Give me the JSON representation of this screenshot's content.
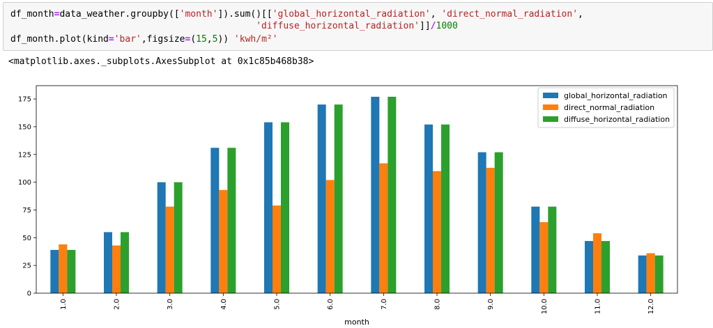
{
  "code": {
    "line1_a": "df_month",
    "line1_b": "=",
    "line1_c": "data_weather.groupby([",
    "line1_d": "'month'",
    "line1_e": "]).sum()[[",
    "line1_f": "'global_horizontal_radiation'",
    "line1_g": ", ",
    "line1_h": "'direct_normal_radiation'",
    "line1_i": ",",
    "line2_a": "'diffuse_horizontal_radiation'",
    "line2_b": "]]",
    "line2_c": "/",
    "line2_d": "1000",
    "line3_a": "df_month.plot(kind",
    "line3_b": "=",
    "line3_c": "'bar'",
    "line3_d": ",figsize",
    "line3_e": "=",
    "line3_f": "(",
    "line3_g": "15",
    "line3_h": ",",
    "line3_i": "5",
    "line3_j": "))",
    "line3_k": " 'kwh/m²'"
  },
  "output": {
    "repr": "<matplotlib.axes._subplots.AxesSubplot at 0x1c85b468b38>"
  },
  "chart_data": {
    "type": "bar",
    "xlabel": "month",
    "ylabel": "",
    "categories": [
      "1.0",
      "2.0",
      "3.0",
      "4.0",
      "5.0",
      "6.0",
      "7.0",
      "8.0",
      "9.0",
      "10.0",
      "11.0",
      "12.0"
    ],
    "yticks": [
      0,
      25,
      50,
      75,
      100,
      125,
      150,
      175
    ],
    "ylim": [
      0,
      187
    ],
    "legend_position": "top-right",
    "grid": false,
    "series": [
      {
        "name": "global_horizontal_radiation",
        "color": "#1f77b4",
        "values": [
          39,
          55,
          100,
          131,
          154,
          170,
          177,
          152,
          127,
          78,
          47,
          34
        ]
      },
      {
        "name": "direct_normal_radiation",
        "color": "#ff7f0e",
        "values": [
          44,
          43,
          78,
          93,
          79,
          102,
          117,
          110,
          113,
          64,
          54,
          36
        ]
      },
      {
        "name": "diffuse_horizontal_radiation",
        "color": "#2ca02c",
        "values": [
          39,
          55,
          100,
          131,
          154,
          170,
          177,
          152,
          127,
          78,
          47,
          34
        ]
      }
    ]
  }
}
